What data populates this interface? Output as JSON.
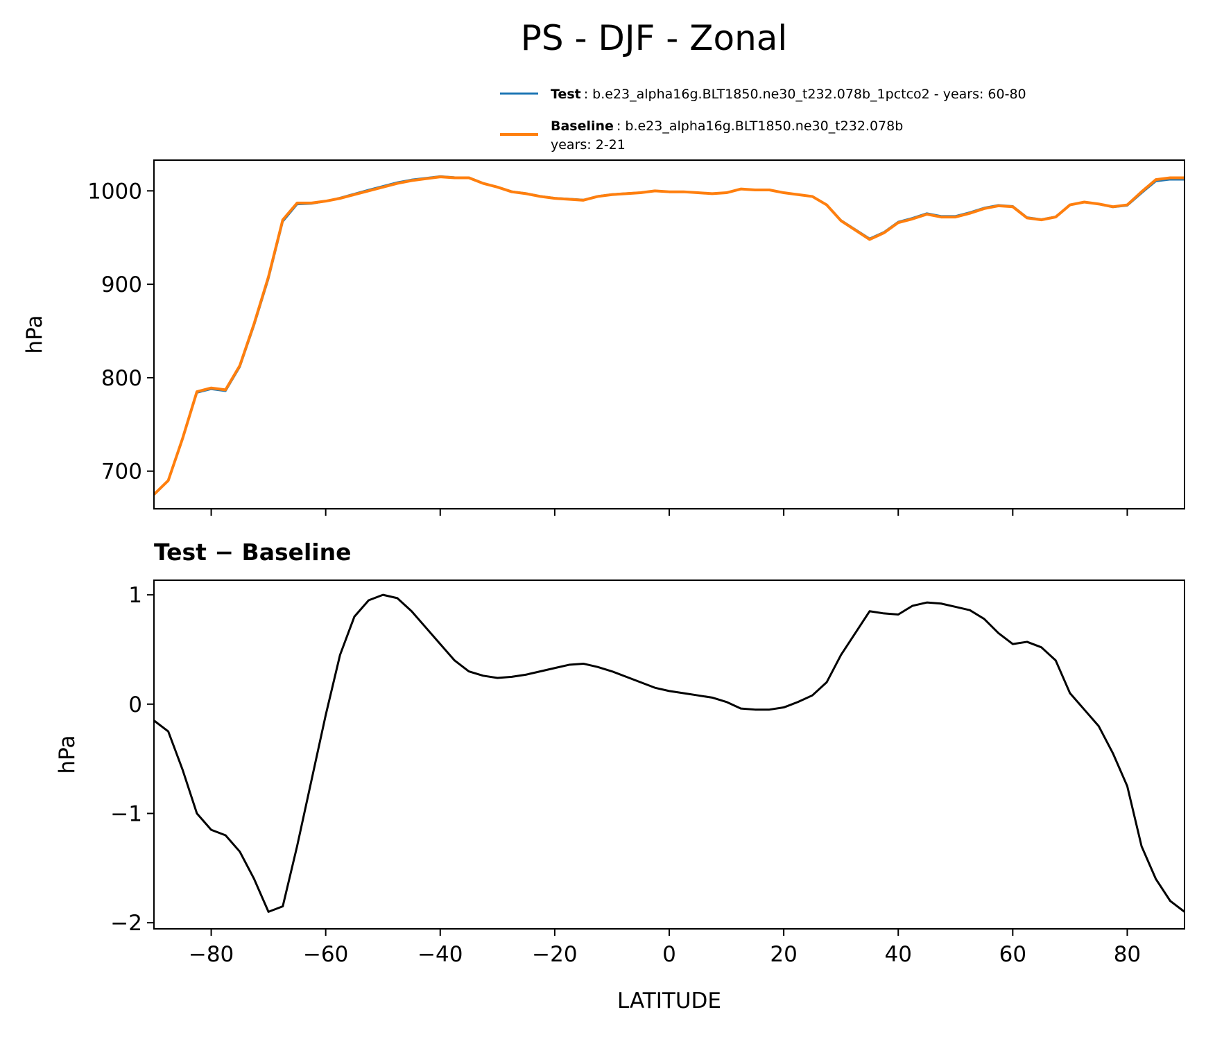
{
  "chart_data": [
    {
      "type": "line",
      "title": "PS - DJF - Zonal",
      "ylabel": "hPa",
      "x": [
        -90,
        -87.5,
        -85,
        -82.5,
        -80,
        -77.5,
        -75,
        -72.5,
        -70,
        -67.5,
        -65,
        -62.5,
        -60,
        -57.5,
        -55,
        -52.5,
        -50,
        -47.5,
        -45,
        -42.5,
        -40,
        -37.5,
        -35,
        -32.5,
        -30,
        -27.5,
        -25,
        -22.5,
        -20,
        -17.5,
        -15,
        -12.5,
        -10,
        -7.5,
        -5,
        -2.5,
        0,
        2.5,
        5,
        7.5,
        10,
        12.5,
        15,
        17.5,
        20,
        22.5,
        25,
        27.5,
        30,
        32.5,
        35,
        37.5,
        40,
        42.5,
        45,
        47.5,
        50,
        52.5,
        55,
        57.5,
        60,
        62.5,
        65,
        67.5,
        70,
        72.5,
        75,
        77.5,
        80,
        82.5,
        85,
        87.5,
        90
      ],
      "series": [
        {
          "name": "Test",
          "legend_text": [
            ": b.e23_alpha16g.BLT1850.ne30_t232.078b_1pctco2 - years: 60-80"
          ],
          "color": "#1f77b4",
          "values": [
            674.9,
            689.8,
            734.4,
            784.0,
            787.9,
            785.8,
            811.7,
            856.4,
            906.1,
            967.2,
            985.7,
            986.3,
            988.9,
            992.5,
            996.8,
            1001.0,
            1005.0,
            1009.0,
            1011.9,
            1013.7,
            1015.6,
            1014.4,
            1014.3,
            1008.3,
            1004.2,
            999.3,
            997.3,
            994.3,
            992.3,
            991.4,
            990.4,
            994.3,
            996.3,
            997.3,
            998.2,
            1000.2,
            999.1,
            999.1,
            998.1,
            997.1,
            998.0,
            1002.0,
            1001.0,
            1001.0,
            998.0,
            996.0,
            994.1,
            985.2,
            968.5,
            958.7,
            948.9,
            955.8,
            966.8,
            970.9,
            975.9,
            972.9,
            972.9,
            976.9,
            981.8,
            984.7,
            983.6,
            971.6,
            969.5,
            972.4,
            985.1,
            988.0,
            985.8,
            982.6,
            984.3,
            997.7,
            1010.4,
            1012.2,
            1012.1
          ]
        },
        {
          "name": "Baseline",
          "legend_text": [
            ": b.e23_alpha16g.BLT1850.ne30_t232.078b",
            "years: 2-21"
          ],
          "color": "#ff7f0e",
          "values": [
            675,
            690,
            735,
            785,
            789,
            787,
            813,
            858,
            908,
            969,
            987,
            987,
            989,
            992,
            996,
            1000,
            1004,
            1008,
            1011,
            1013,
            1015,
            1014,
            1014,
            1008,
            1004,
            999,
            997,
            994,
            992,
            991,
            990,
            994,
            996,
            997,
            998,
            1000,
            999,
            999,
            998,
            997,
            998,
            1002,
            1001,
            1001,
            998,
            996,
            994,
            985,
            968,
            958,
            948,
            955,
            966,
            970,
            975,
            972,
            972,
            976,
            981,
            984,
            983,
            971,
            969,
            972,
            985,
            988,
            986,
            983,
            985,
            999,
            1012,
            1014,
            1014
          ]
        }
      ],
      "xlim": [
        -90,
        90
      ],
      "xticks": [
        -80,
        -60,
        -40,
        -20,
        0,
        20,
        40,
        60,
        80
      ],
      "ylim": [
        659.7,
        1032.9
      ],
      "yticks": [
        700,
        800,
        900,
        1000
      ]
    },
    {
      "type": "line",
      "title": "Test − Baseline",
      "ylabel": "hPa",
      "xlabel": "LATITUDE",
      "x": [
        -90,
        -87.5,
        -85,
        -82.5,
        -80,
        -77.5,
        -75,
        -72.5,
        -70,
        -67.5,
        -65,
        -62.5,
        -60,
        -57.5,
        -55,
        -52.5,
        -50,
        -47.5,
        -45,
        -42.5,
        -40,
        -37.5,
        -35,
        -32.5,
        -30,
        -27.5,
        -25,
        -22.5,
        -20,
        -17.5,
        -15,
        -12.5,
        -10,
        -7.5,
        -5,
        -2.5,
        0,
        2.5,
        5,
        7.5,
        10,
        12.5,
        15,
        17.5,
        20,
        22.5,
        25,
        27.5,
        30,
        32.5,
        35,
        37.5,
        40,
        42.5,
        45,
        47.5,
        50,
        52.5,
        55,
        57.5,
        60,
        62.5,
        65,
        67.5,
        70,
        72.5,
        75,
        77.5,
        80,
        82.5,
        85,
        87.5,
        90
      ],
      "series": [
        {
          "color": "#000000",
          "values": [
            -0.15,
            -0.25,
            -0.6,
            -1.0,
            -1.15,
            -1.2,
            -1.35,
            -1.6,
            -1.9,
            -1.85,
            -1.3,
            -0.7,
            -0.1,
            0.45,
            0.8,
            0.95,
            1.0,
            0.97,
            0.85,
            0.7,
            0.55,
            0.4,
            0.3,
            0.26,
            0.24,
            0.25,
            0.27,
            0.3,
            0.33,
            0.36,
            0.37,
            0.34,
            0.3,
            0.25,
            0.2,
            0.15,
            0.12,
            0.1,
            0.08,
            0.06,
            0.02,
            -0.04,
            -0.05,
            -0.05,
            -0.03,
            0.02,
            0.08,
            0.2,
            0.45,
            0.65,
            0.85,
            0.83,
            0.82,
            0.9,
            0.93,
            0.92,
            0.89,
            0.86,
            0.78,
            0.65,
            0.55,
            0.57,
            0.52,
            0.4,
            0.1,
            -0.05,
            -0.2,
            -0.45,
            -0.75,
            -1.3,
            -1.6,
            -1.8,
            -1.9
          ]
        }
      ],
      "xlim": [
        -90,
        90
      ],
      "xticks": [
        {
          "value": -80,
          "label": "−80"
        },
        {
          "value": -60,
          "label": "−60"
        },
        {
          "value": -40,
          "label": "−40"
        },
        {
          "value": -20,
          "label": "−20"
        },
        0,
        20,
        40,
        60,
        80
      ],
      "ylim": [
        -2.056,
        1.134
      ],
      "yticks": [
        {
          "value": -2,
          "label": "−2"
        },
        {
          "value": -1,
          "label": "−1"
        },
        0,
        1
      ]
    }
  ]
}
